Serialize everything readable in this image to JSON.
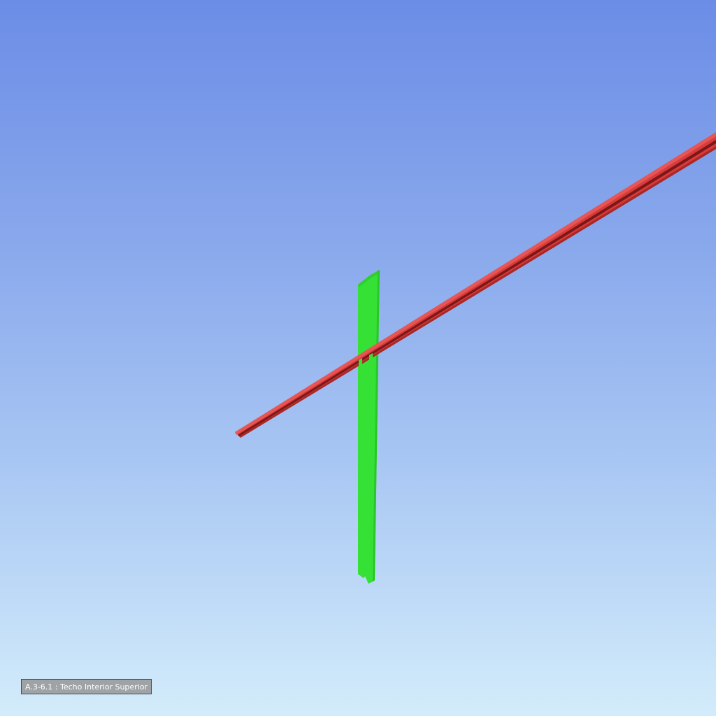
{
  "viewer": {
    "selection_label": "A.3-6.1 : Techo Interior Superior"
  },
  "colors": {
    "sky_top": "#6b8de6",
    "sky_bottom": "#d3ecfb",
    "beam": "#d93a3a",
    "beam_dark": "#8e1f1f",
    "column": "#35e135",
    "column_dark": "#22b822"
  },
  "objects": [
    {
      "id": "red-beam",
      "kind": "beam",
      "color_name": "red"
    },
    {
      "id": "green-column",
      "kind": "column",
      "color_name": "green"
    }
  ]
}
